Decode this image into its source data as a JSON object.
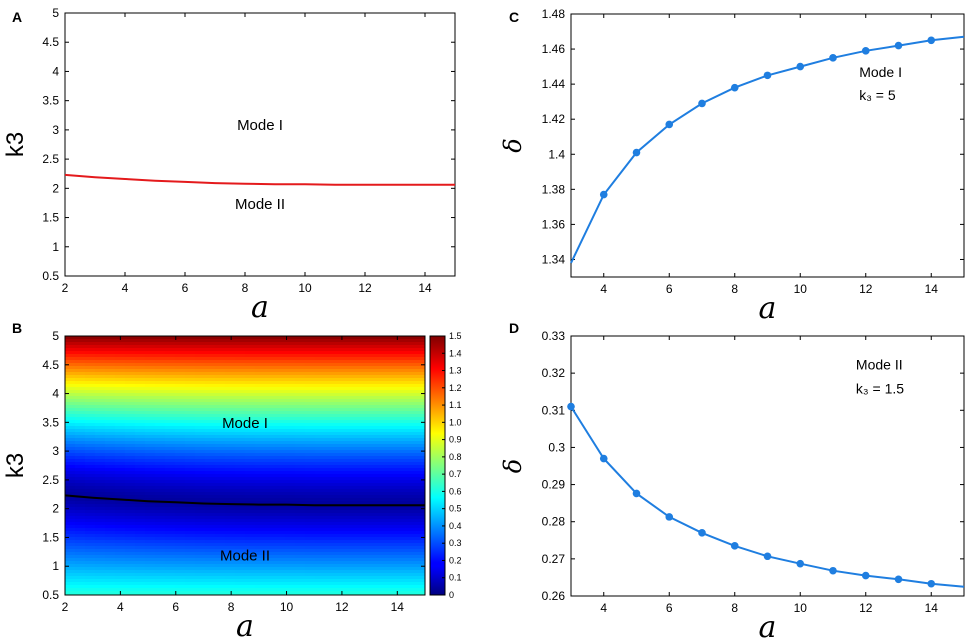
{
  "chart_data": [
    {
      "id": "A",
      "panel_label": "A",
      "type": "line",
      "xlabel": "a",
      "ylabel": "k3",
      "xlim": [
        2,
        15
      ],
      "ylim": [
        0.5,
        5
      ],
      "xticks": [
        2,
        4,
        6,
        8,
        10,
        12,
        14
      ],
      "yticks": [
        0.5,
        1,
        1.5,
        2,
        2.5,
        3,
        3.5,
        4,
        4.5,
        5
      ],
      "series": [
        {
          "color": "#e41a1c",
          "x": [
            2,
            3,
            4,
            5,
            6,
            7,
            8,
            9,
            10,
            11,
            12,
            13,
            14,
            15
          ],
          "y": [
            2.23,
            2.19,
            2.16,
            2.13,
            2.11,
            2.09,
            2.08,
            2.07,
            2.07,
            2.06,
            2.06,
            2.06,
            2.06,
            2.06
          ]
        }
      ],
      "annotations": [
        {
          "text": "Mode I",
          "x": 8.5,
          "y": 3.0
        },
        {
          "text": "Mode II",
          "x": 8.5,
          "y": 1.65
        }
      ]
    },
    {
      "id": "B",
      "panel_label": "B",
      "type": "heatmap",
      "xlabel": "a",
      "ylabel": "k3",
      "xlim": [
        2,
        15
      ],
      "ylim": [
        0.5,
        5
      ],
      "xticks": [
        2,
        4,
        6,
        8,
        10,
        12,
        14
      ],
      "yticks": [
        0.5,
        1,
        1.5,
        2,
        2.5,
        3,
        3.5,
        4,
        4.5,
        5
      ],
      "colormap": "jet",
      "clim": [
        0,
        1.5
      ],
      "colorbar_ticks": [
        "0",
        "0.1",
        "0.2",
        "0.3",
        "0.4",
        "0.5",
        "0.6",
        "0.7",
        "0.8",
        "0.9",
        "1.0",
        "1.1",
        "1.2",
        "1.3",
        "1.4",
        "1.5"
      ],
      "boundary": {
        "color": "#000000",
        "x": [
          2,
          3,
          4,
          5,
          6,
          7,
          8,
          9,
          10,
          11,
          12,
          13,
          14,
          15
        ],
        "y": [
          2.23,
          2.19,
          2.16,
          2.13,
          2.11,
          2.09,
          2.08,
          2.07,
          2.07,
          2.06,
          2.06,
          2.06,
          2.06,
          2.06
        ]
      },
      "annotations": [
        {
          "text": "Mode I",
          "x": 8.5,
          "y": 3.4
        },
        {
          "text": "Mode II",
          "x": 8.5,
          "y": 1.1
        }
      ]
    },
    {
      "id": "C",
      "panel_label": "C",
      "type": "line",
      "xlabel": "a",
      "ylabel": "δ",
      "xlim": [
        3,
        15
      ],
      "ylim": [
        1.33,
        1.48
      ],
      "xticks": [
        4,
        6,
        8,
        10,
        12,
        14
      ],
      "yticks": [
        "1.34",
        "1.36",
        "1.38",
        "1.4",
        "1.42",
        "1.44",
        "1.46",
        "1.48"
      ],
      "ytick_values": [
        1.34,
        1.36,
        1.38,
        1.4,
        1.42,
        1.44,
        1.46,
        1.48
      ],
      "series": [
        {
          "color": "#1f7ee0",
          "x": [
            3,
            4,
            5,
            6,
            7,
            8,
            9,
            10,
            11,
            12,
            13,
            14,
            15
          ],
          "y": [
            1.338,
            1.377,
            1.401,
            1.417,
            1.429,
            1.438,
            1.445,
            1.45,
            1.455,
            1.459,
            1.462,
            1.465,
            1.467
          ],
          "markers": [
            4,
            5,
            6,
            7,
            8,
            9,
            10,
            11,
            12,
            13,
            14
          ]
        }
      ],
      "annotations": [
        {
          "text": "Mode I",
          "x": 11.8,
          "y": 1.444
        },
        {
          "text": "k₃  =  5",
          "x": 11.8,
          "y": 1.431
        }
      ]
    },
    {
      "id": "D",
      "panel_label": "D",
      "type": "line",
      "xlabel": "a",
      "ylabel": "δ",
      "xlim": [
        3,
        15
      ],
      "ylim": [
        0.26,
        0.33
      ],
      "xticks": [
        4,
        6,
        8,
        10,
        12,
        14
      ],
      "yticks": [
        "0.26",
        "0.27",
        "0.28",
        "0.29",
        "0.3",
        "0.31",
        "0.32",
        "0.33"
      ],
      "ytick_values": [
        0.26,
        0.27,
        0.28,
        0.29,
        0.3,
        0.31,
        0.32,
        0.33
      ],
      "series": [
        {
          "color": "#1f7ee0",
          "x": [
            3,
            4,
            5,
            6,
            7,
            8,
            9,
            10,
            11,
            12,
            13,
            14,
            15
          ],
          "y": [
            0.311,
            0.297,
            0.2876,
            0.2813,
            0.277,
            0.2735,
            0.2707,
            0.2687,
            0.2668,
            0.2655,
            0.2645,
            0.2633,
            0.2625
          ],
          "markers": [
            3,
            4,
            5,
            6,
            7,
            8,
            9,
            10,
            11,
            12,
            13,
            14
          ]
        }
      ],
      "annotations": [
        {
          "text": "Mode II",
          "x": 11.7,
          "y": 0.321
        },
        {
          "text": "k₃  =  1.5",
          "x": 11.7,
          "y": 0.3145
        }
      ]
    }
  ]
}
